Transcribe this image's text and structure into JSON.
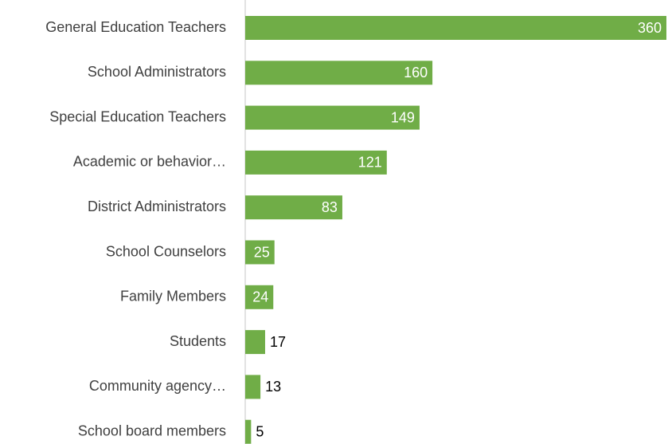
{
  "chart_data": {
    "type": "bar",
    "orientation": "horizontal",
    "categories": [
      "General Education Teachers",
      "School Administrators",
      "Special Education Teachers",
      "Academic or behavior…",
      "District Administrators",
      "School Counselors",
      "Family Members",
      "Students",
      "Community agency…",
      "School board members"
    ],
    "values": [
      360,
      160,
      149,
      121,
      83,
      25,
      24,
      17,
      13,
      5
    ],
    "color": "#70ad47"
  }
}
